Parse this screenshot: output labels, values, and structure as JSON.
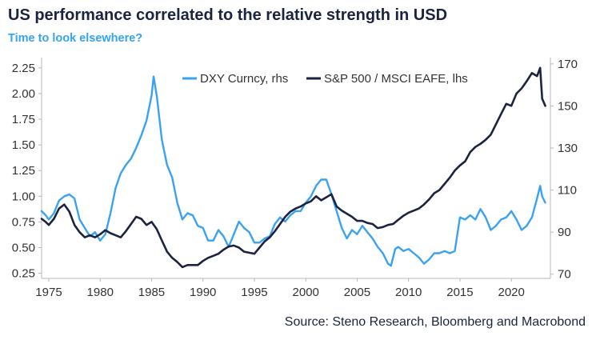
{
  "title": "US performance correlated to the relative strength in USD",
  "subtitle": "Time to look elsewhere?",
  "source": "Source: Steno Research, Bloomberg and Macrobond",
  "colors": {
    "dxy": "#3aa2f0",
    "ratio": "#1c2340",
    "axis": "#b8b8b8"
  },
  "chart_data": {
    "type": "line",
    "grid": false,
    "legend_position": "top-center",
    "xlim": [
      1974.3,
      2023.8
    ],
    "x_ticks": [
      1975,
      1980,
      1985,
      1990,
      1995,
      2000,
      2005,
      2010,
      2015,
      2020
    ],
    "y_left": {
      "lim": [
        0.2,
        2.35
      ],
      "ticks": [
        "0.25",
        "0.50",
        "0.75",
        "1.00",
        "1.25",
        "1.50",
        "1.75",
        "2.00",
        "2.25"
      ]
    },
    "y_right": {
      "lim": [
        68,
        173
      ],
      "ticks": [
        "70",
        "90",
        "110",
        "130",
        "150",
        "170"
      ]
    },
    "series": [
      {
        "name": "DXY Curncy, rhs",
        "axis": "right",
        "x": [
          1974.3,
          1974.7,
          1975.0,
          1975.5,
          1976.0,
          1976.5,
          1977.0,
          1977.5,
          1978.0,
          1978.5,
          1979.0,
          1979.5,
          1980.0,
          1980.5,
          1981.0,
          1981.5,
          1982.0,
          1982.5,
          1983.0,
          1983.5,
          1984.0,
          1984.5,
          1985.0,
          1985.2,
          1985.5,
          1986.0,
          1986.5,
          1987.0,
          1987.5,
          1988.0,
          1988.5,
          1989.0,
          1989.5,
          1990.0,
          1990.5,
          1991.0,
          1991.5,
          1992.0,
          1992.5,
          1993.0,
          1993.5,
          1994.0,
          1994.5,
          1995.0,
          1995.5,
          1996.0,
          1996.5,
          1997.0,
          1997.5,
          1998.0,
          1998.5,
          1999.0,
          1999.5,
          2000.0,
          2000.5,
          2001.0,
          2001.5,
          2002.0,
          2002.5,
          2003.0,
          2003.5,
          2004.0,
          2004.5,
          2005.0,
          2005.5,
          2006.0,
          2006.5,
          2007.0,
          2007.5,
          2008.0,
          2008.3,
          2008.7,
          2009.0,
          2009.5,
          2010.0,
          2010.5,
          2011.0,
          2011.5,
          2012.0,
          2012.5,
          2013.0,
          2013.5,
          2014.0,
          2014.5,
          2015.0,
          2015.5,
          2016.0,
          2016.5,
          2017.0,
          2017.5,
          2018.0,
          2018.5,
          2019.0,
          2019.5,
          2020.0,
          2020.5,
          2021.0,
          2021.5,
          2022.0,
          2022.5,
          2022.8,
          2023.0,
          2023.3
        ],
        "values": [
          100,
          98,
          96,
          99,
          105,
          107,
          108,
          106,
          96,
          92,
          88,
          90,
          86,
          89,
          99,
          111,
          118,
          122,
          125,
          130,
          136,
          143,
          155,
          164,
          155,
          134,
          122,
          116,
          104,
          96,
          99,
          98,
          93,
          92,
          86,
          86,
          91,
          88,
          83,
          89,
          95,
          92,
          90,
          85,
          85,
          87,
          88,
          94,
          97,
          95,
          98,
          100,
          100,
          104,
          107,
          112,
          115,
          115,
          108,
          100,
          92,
          87,
          91,
          89,
          93,
          90,
          87,
          83,
          80,
          75,
          74,
          82,
          83,
          81,
          82,
          80,
          78,
          75,
          77,
          80,
          80,
          81,
          80,
          81,
          97,
          96,
          98,
          96,
          101,
          97,
          91,
          93,
          96,
          97,
          100,
          96,
          91,
          93,
          97,
          106,
          112,
          107,
          104
        ]
      },
      {
        "name": "S&P 500 / MSCI EAFE, lhs",
        "axis": "left",
        "x": [
          1974.3,
          1974.7,
          1975.0,
          1975.5,
          1976.0,
          1976.5,
          1977.0,
          1977.5,
          1978.0,
          1978.5,
          1979.0,
          1979.5,
          1980.0,
          1980.5,
          1981.0,
          1981.5,
          1982.0,
          1982.5,
          1983.0,
          1983.5,
          1984.0,
          1984.5,
          1985.0,
          1985.5,
          1986.0,
          1986.5,
          1987.0,
          1987.5,
          1988.0,
          1988.5,
          1989.0,
          1989.5,
          1990.0,
          1990.5,
          1991.0,
          1991.5,
          1992.0,
          1992.5,
          1993.0,
          1993.5,
          1994.0,
          1994.5,
          1995.0,
          1995.5,
          1996.0,
          1996.5,
          1997.0,
          1997.5,
          1998.0,
          1998.5,
          1999.0,
          1999.5,
          2000.0,
          2000.5,
          2001.0,
          2001.5,
          2002.0,
          2002.5,
          2003.0,
          2003.5,
          2004.0,
          2004.5,
          2005.0,
          2005.5,
          2006.0,
          2006.5,
          2007.0,
          2007.5,
          2008.0,
          2008.5,
          2009.0,
          2009.5,
          2010.0,
          2010.5,
          2011.0,
          2011.5,
          2012.0,
          2012.5,
          2013.0,
          2013.5,
          2014.0,
          2014.5,
          2015.0,
          2015.5,
          2016.0,
          2016.5,
          2017.0,
          2017.5,
          2018.0,
          2018.5,
          2019.0,
          2019.5,
          2020.0,
          2020.5,
          2021.0,
          2021.5,
          2022.0,
          2022.5,
          2022.8,
          2023.0,
          2023.3
        ],
        "values": [
          0.78,
          0.75,
          0.72,
          0.78,
          0.88,
          0.92,
          0.85,
          0.72,
          0.65,
          0.6,
          0.62,
          0.6,
          0.63,
          0.67,
          0.64,
          0.62,
          0.6,
          0.66,
          0.73,
          0.8,
          0.78,
          0.72,
          0.75,
          0.68,
          0.57,
          0.46,
          0.4,
          0.36,
          0.31,
          0.33,
          0.33,
          0.33,
          0.37,
          0.4,
          0.42,
          0.44,
          0.48,
          0.51,
          0.52,
          0.5,
          0.46,
          0.45,
          0.44,
          0.5,
          0.56,
          0.6,
          0.66,
          0.73,
          0.8,
          0.85,
          0.88,
          0.9,
          0.93,
          0.95,
          1.0,
          0.96,
          0.99,
          1.02,
          0.9,
          0.86,
          0.83,
          0.8,
          0.76,
          0.76,
          0.74,
          0.73,
          0.69,
          0.7,
          0.72,
          0.73,
          0.77,
          0.81,
          0.84,
          0.86,
          0.88,
          0.92,
          0.97,
          1.03,
          1.06,
          1.12,
          1.18,
          1.25,
          1.3,
          1.34,
          1.43,
          1.48,
          1.51,
          1.55,
          1.6,
          1.7,
          1.8,
          1.9,
          1.88,
          2.0,
          2.05,
          2.12,
          2.2,
          2.17,
          2.25,
          1.95,
          1.88
        ]
      }
    ]
  }
}
